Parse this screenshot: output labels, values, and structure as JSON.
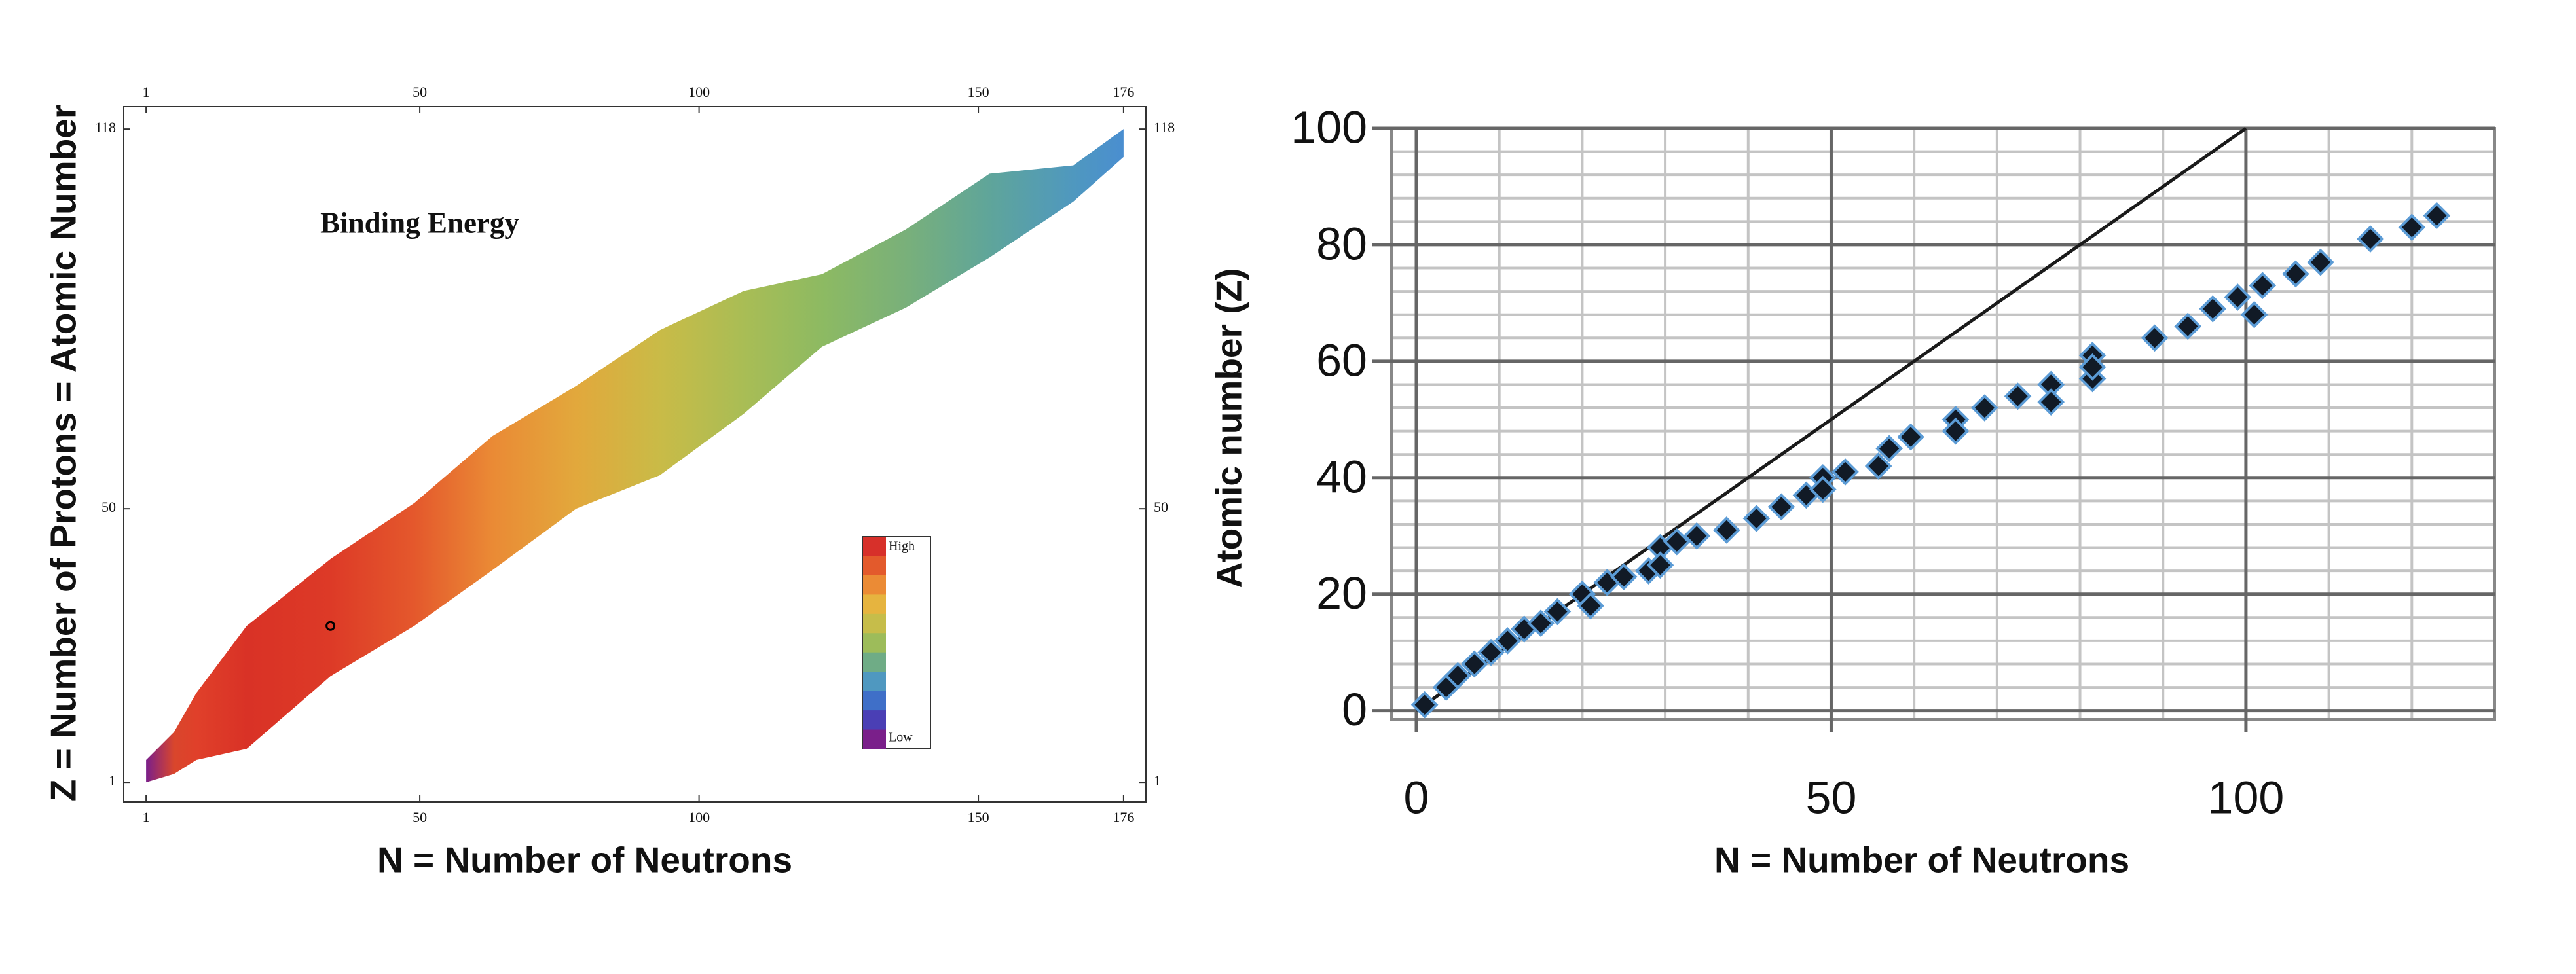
{
  "chart_data": [
    {
      "type": "heatmap-band",
      "title": "Binding Energy",
      "xlabel": "N = Number of Neutrons",
      "ylabel": "Z = Number of Protons = Atomic Number",
      "xlim": [
        -3,
        180
      ],
      "ylim": [
        -2.5,
        122
      ],
      "xticks": [
        1,
        50,
        100,
        150,
        176
      ],
      "yticks": [
        1,
        50,
        118
      ],
      "x": [
        1,
        6,
        10,
        19,
        34,
        49,
        63,
        78,
        93,
        108,
        122,
        137,
        152,
        167,
        176
      ],
      "zmin": [
        1,
        2.5,
        5,
        7,
        20,
        29,
        39,
        50,
        56,
        67,
        79,
        86,
        95,
        105,
        113
      ],
      "zmax": [
        5,
        10,
        17,
        29,
        41,
        51,
        63,
        72,
        82,
        89,
        92,
        100,
        110,
        111.5,
        118
      ],
      "band_colors": [
        "#7a1f8a",
        "#d9462c",
        "#e0402a",
        "#d93226",
        "#dd3a27",
        "#e4582c",
        "#ea8a35",
        "#e2a83c",
        "#c9bb47",
        "#a9bd55",
        "#8dba62",
        "#79b07a",
        "#5fa59a",
        "#4f98bf",
        "#4a8ed0"
      ],
      "highlight": {
        "x": 34,
        "y": 29
      },
      "colorbar": {
        "labels": [
          "High",
          "Low"
        ],
        "colors": [
          "#d7302a",
          "#e35a2c",
          "#eb8b35",
          "#e6b43f",
          "#c6bd4a",
          "#9dbc5a",
          "#6fac86",
          "#4f98c0",
          "#3f6fc8",
          "#4a3fb5",
          "#7a1f8a"
        ]
      }
    },
    {
      "type": "scatter",
      "xlabel": "N = Number of Neutrons",
      "ylabel": "Atomic number (Z)",
      "xlim": [
        -3,
        130
      ],
      "ylim": [
        -1.5,
        100
      ],
      "xticks": [
        0,
        50,
        100
      ],
      "yticks": [
        0,
        20,
        40,
        60,
        80,
        100
      ],
      "xminor": [
        10,
        20,
        30,
        40,
        60,
        70,
        80,
        90,
        110,
        120
      ],
      "yminor": [
        4,
        8,
        12,
        16,
        24,
        28,
        32,
        36,
        44,
        48,
        52,
        56,
        64,
        68,
        72,
        76,
        84,
        88,
        92,
        96
      ],
      "grid": true,
      "series": [
        {
          "type": "line",
          "color": "#1a1a1a",
          "x": [
            0,
            100
          ],
          "values": [
            0,
            100
          ]
        },
        {
          "type": "scatter",
          "color": "#111a26",
          "edgecolor": "#5b9bd5",
          "x": [
            1,
            3.6,
            5,
            7,
            9,
            11,
            13,
            15,
            17,
            20,
            21,
            23,
            25,
            28,
            29.4,
            29.4,
            31.4,
            33.8,
            37.4,
            41,
            44,
            47,
            49,
            49,
            51.7,
            55.7,
            57,
            59.6,
            65,
            65,
            68.5,
            72.5,
            76.5,
            76.5,
            81.5,
            81.5,
            81.5,
            89,
            93,
            96,
            99,
            101,
            102,
            106,
            109,
            115,
            120,
            123
          ],
          "values": [
            1,
            4,
            6,
            8,
            10,
            12,
            14,
            15,
            17,
            20,
            18,
            22,
            23,
            24,
            28,
            25,
            29,
            30,
            31,
            33,
            35,
            37,
            40,
            38,
            41,
            42,
            45,
            47,
            50,
            48,
            52,
            54,
            56,
            53,
            61,
            57,
            59,
            64,
            66,
            69,
            71,
            68,
            73,
            75,
            77,
            81,
            83,
            85
          ]
        }
      ]
    }
  ]
}
